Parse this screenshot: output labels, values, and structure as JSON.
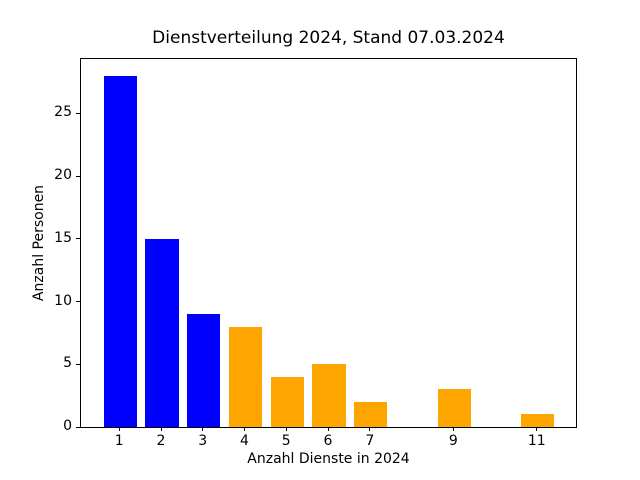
{
  "chart_data": {
    "type": "bar",
    "title": "Dienstverteilung 2024, Stand 07.03.2024",
    "xlabel": "Anzahl Dienste in 2024",
    "ylabel": "Anzahl Personen",
    "x": [
      1,
      2,
      3,
      4,
      5,
      6,
      7,
      9,
      11
    ],
    "values": [
      28,
      15,
      9,
      8,
      4,
      5,
      2,
      3,
      1
    ],
    "bar_colors": [
      "#0000ff",
      "#0000ff",
      "#0000ff",
      "#ffa500",
      "#ffa500",
      "#ffa500",
      "#ffa500",
      "#ffa500",
      "#ffa500"
    ],
    "bar_width": 0.8,
    "xlim": [
      0.06,
      11.94
    ],
    "ylim": [
      0,
      29.4
    ],
    "xticks": [
      1,
      2,
      3,
      4,
      5,
      6,
      7,
      9,
      11
    ],
    "yticks": [
      0,
      5,
      10,
      15,
      20,
      25
    ],
    "grid": false,
    "legend_position": "none",
    "colors": {
      "series_blue": "#0000ff",
      "series_orange": "#ffa500",
      "axis": "#000000",
      "background": "#ffffff"
    }
  }
}
